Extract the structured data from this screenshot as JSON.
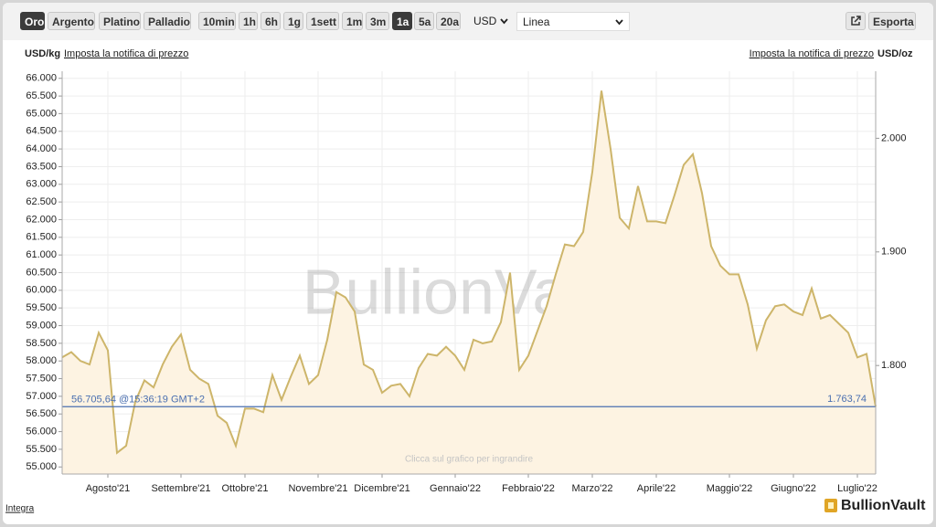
{
  "toolbar": {
    "metals": [
      "Oro",
      "Argento",
      "Platino",
      "Palladio"
    ],
    "active_metal": "Oro",
    "ranges": [
      "10min",
      "1h",
      "6h",
      "1g",
      "1sett",
      "1m",
      "3m",
      "1a",
      "5a",
      "20a"
    ],
    "active_range": "1a",
    "currency": "USD",
    "style": "Linea",
    "export": "Esporta"
  },
  "header": {
    "left_unit": "USD/kg",
    "left_link": "Imposta la notifica di prezzo",
    "right_link": "Imposta la notifica di prezzo",
    "right_unit": "USD/oz"
  },
  "chart_data": {
    "type": "area",
    "watermark": "BullionVault",
    "hint": "Clicca sul grafico per ingrandire",
    "categories": [
      null,
      null,
      null,
      null,
      null,
      "Agosto'21",
      null,
      null,
      null,
      null,
      null,
      null,
      null,
      "Settembre'21",
      null,
      null,
      null,
      null,
      null,
      null,
      "Ottobre'21",
      null,
      null,
      null,
      null,
      null,
      null,
      null,
      "Novembre'21",
      null,
      null,
      null,
      null,
      null,
      null,
      "Dicembre'21",
      null,
      null,
      null,
      null,
      null,
      null,
      null,
      "Gennaio'22",
      null,
      null,
      null,
      null,
      null,
      null,
      null,
      "Febbraio'22",
      null,
      null,
      null,
      null,
      null,
      null,
      "Marzo'22",
      null,
      null,
      null,
      null,
      null,
      null,
      "Aprile'22",
      null,
      null,
      null,
      null,
      null,
      null,
      null,
      "Maggio'22",
      null,
      null,
      null,
      null,
      null,
      null,
      "Giugno'22",
      null,
      null,
      null,
      null,
      null,
      null,
      "Luglio'22",
      null,
      null
    ],
    "series": [
      {
        "name": "Oro",
        "color": "#cdb56a",
        "fill": "#fdf3e2",
        "values": [
          58100,
          58250,
          58000,
          57900,
          58800,
          58300,
          55400,
          55600,
          56850,
          57450,
          57250,
          57900,
          58400,
          58750,
          57750,
          57500,
          57350,
          56450,
          56250,
          55600,
          56650,
          56650,
          56550,
          57600,
          56900,
          57550,
          58150,
          57350,
          57600,
          58600,
          59950,
          59800,
          59400,
          57900,
          57750,
          57100,
          57300,
          57350,
          57000,
          57800,
          58200,
          58150,
          58400,
          58150,
          57750,
          58600,
          58500,
          58550,
          59100,
          60500,
          57750,
          58150,
          58850,
          59550,
          60450,
          61300,
          61250,
          61650,
          63350,
          65650,
          64000,
          62050,
          61750,
          62950,
          61950,
          61950,
          61900,
          62700,
          63550,
          63850,
          62750,
          61250,
          60700,
          60450,
          60450,
          59600,
          58350,
          59150,
          59550,
          59600,
          59400,
          59300,
          60050,
          59200,
          59300,
          59050,
          58800,
          58100,
          58200,
          56705
        ]
      }
    ],
    "ylim": [
      54800,
      66200
    ],
    "yticks": [
      {
        "value": 55000,
        "label": "55.000"
      },
      {
        "value": 55500,
        "label": "55.500"
      },
      {
        "value": 56000,
        "label": "56.000"
      },
      {
        "value": 56500,
        "label": "56.500"
      },
      {
        "value": 57000,
        "label": "57.000"
      },
      {
        "value": 57500,
        "label": "57.500"
      },
      {
        "value": 58000,
        "label": "58.000"
      },
      {
        "value": 58500,
        "label": "58.500"
      },
      {
        "value": 59000,
        "label": "59.000"
      },
      {
        "value": 59500,
        "label": "59.500"
      },
      {
        "value": 60000,
        "label": "60.000"
      },
      {
        "value": 60500,
        "label": "60.500"
      },
      {
        "value": 61000,
        "label": "61.000"
      },
      {
        "value": 61500,
        "label": "61.500"
      },
      {
        "value": 62000,
        "label": "62.000"
      },
      {
        "value": 62500,
        "label": "62.500"
      },
      {
        "value": 63000,
        "label": "63.000"
      },
      {
        "value": 63500,
        "label": "63.500"
      },
      {
        "value": 64000,
        "label": "64.000"
      },
      {
        "value": 64500,
        "label": "64.500"
      },
      {
        "value": 65000,
        "label": "65.000"
      },
      {
        "value": 65500,
        "label": "65.500"
      },
      {
        "value": 66000,
        "label": "66.000"
      }
    ],
    "y2lim": [
      1704.5,
      2059.0
    ],
    "y2ticks": [
      {
        "value": 1800,
        "label": "1.800"
      },
      {
        "value": 1900,
        "label": "1.900"
      },
      {
        "value": 2000,
        "label": "2.000"
      }
    ],
    "grid": true,
    "current": {
      "value": 56705.64,
      "label": "56.705,64",
      "time": "@15:36:19 GMT+2",
      "value_oz": 1763.74,
      "value_oz_label": "1.763,74",
      "color": "#4a6fb0"
    }
  },
  "footer": {
    "link": "Integra",
    "logo": "BullionVault"
  }
}
